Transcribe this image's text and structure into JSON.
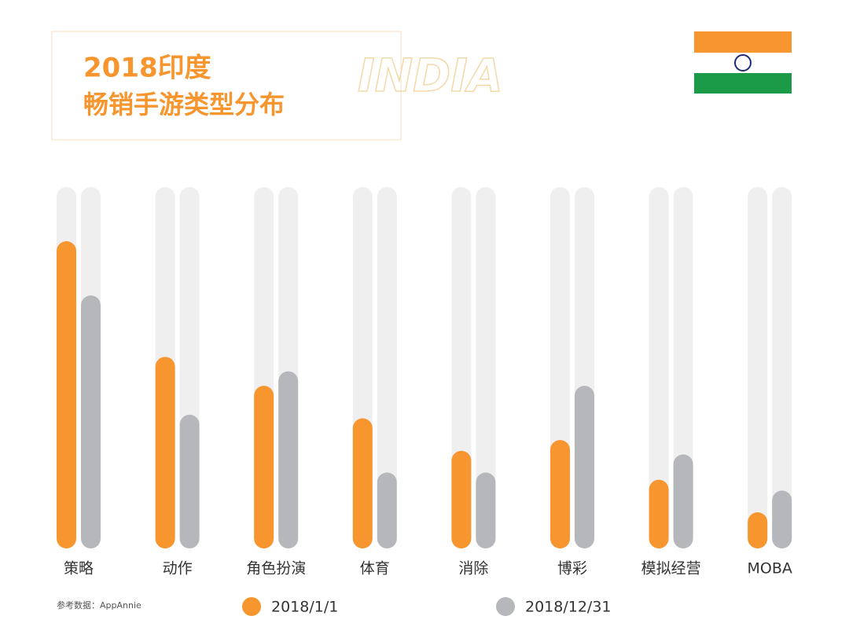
{
  "chart_data": {
    "type": "bar",
    "title": "2018印度",
    "subtitle": "畅销手游类型分布",
    "watermark_title": "INDIA",
    "source": "参考数据：AppAnnie",
    "categories": [
      "策略",
      "动作",
      "角色扮演",
      "体育",
      "消除",
      "博彩",
      "模拟经营",
      "MOBA"
    ],
    "series": [
      {
        "name": "2018/1/1",
        "color": "#f7952f",
        "values": [
          85,
          53,
          45,
          36,
          27,
          30,
          19,
          10
        ]
      },
      {
        "name": "2018/12/31",
        "color": "#b6b7ba",
        "values": [
          70,
          37,
          49,
          21,
          21,
          45,
          26,
          16
        ]
      }
    ],
    "ylim": [
      0,
      100
    ]
  }
}
